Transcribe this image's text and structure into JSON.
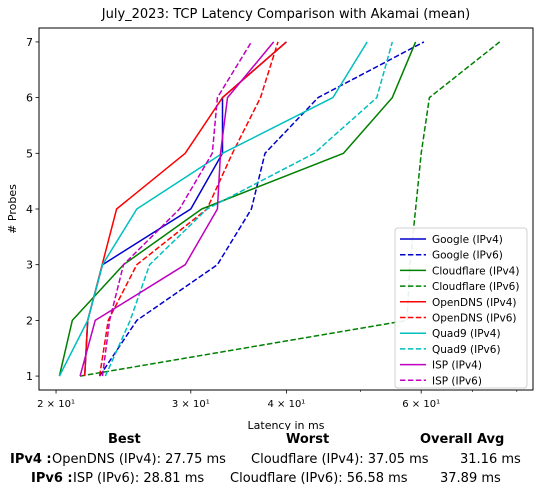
{
  "chart_data": {
    "type": "line",
    "title": "July_2023: TCP Latency Comparison with Akamai (mean)",
    "xlabel": "Latency in ms",
    "ylabel": "# Probes",
    "xscale": "log",
    "xlim": [
      19,
      84
    ],
    "ylim": [
      0.75,
      7.25
    ],
    "yticks": [
      1,
      2,
      3,
      4,
      5,
      6,
      7
    ],
    "xticks": [
      {
        "value": 20,
        "label": "2 × 10¹"
      },
      {
        "value": 30,
        "label": "3 × 10¹"
      },
      {
        "value": 40,
        "label": "4 × 10¹"
      },
      {
        "value": 60,
        "label": "6 × 10¹"
      }
    ],
    "grid": false,
    "legend_position": "lower-right",
    "series": [
      {
        "name": "Google (IPv4)",
        "color": "#0000cc",
        "dash": "solid",
        "points": [
          [
            21.8,
            1
          ],
          [
            22.0,
            2
          ],
          [
            23.0,
            3
          ],
          [
            30.0,
            4
          ],
          [
            33.0,
            5
          ],
          [
            33.0,
            6
          ],
          [
            40.0,
            7
          ]
        ]
      },
      {
        "name": "Google (IPv6)",
        "color": "#0000cc",
        "dash": "dashed",
        "points": [
          [
            22.8,
            1
          ],
          [
            25.5,
            2
          ],
          [
            32.5,
            3
          ],
          [
            36.0,
            4
          ],
          [
            37.5,
            5
          ],
          [
            44.0,
            6
          ],
          [
            60.5,
            7
          ]
        ]
      },
      {
        "name": "Cloudflare (IPv4)",
        "color": "#008000",
        "dash": "solid",
        "points": [
          [
            20.2,
            1
          ],
          [
            21.0,
            2
          ],
          [
            24.5,
            3
          ],
          [
            31.0,
            4
          ],
          [
            47.5,
            5
          ],
          [
            55.0,
            6
          ],
          [
            59.0,
            7
          ]
        ]
      },
      {
        "name": "Cloudflare (IPv6)",
        "color": "#008000",
        "dash": "dashed",
        "points": [
          [
            21.5,
            1
          ],
          [
            57.5,
            2
          ],
          [
            58.0,
            3
          ],
          [
            59.0,
            4
          ],
          [
            60.0,
            5
          ],
          [
            61.5,
            6
          ],
          [
            76.0,
            7
          ]
        ]
      },
      {
        "name": "OpenDNS (IPv4)",
        "color": "#ff0000",
        "dash": "solid",
        "points": [
          [
            21.8,
            1
          ],
          [
            22.0,
            2
          ],
          [
            24.0,
            4
          ],
          [
            29.5,
            5
          ],
          [
            33.0,
            6
          ],
          [
            40.0,
            7
          ]
        ]
      },
      {
        "name": "OpenDNS (IPv6)",
        "color": "#ff0000",
        "dash": "dashed",
        "points": [
          [
            22.8,
            1
          ],
          [
            23.4,
            2
          ],
          [
            25.5,
            3
          ],
          [
            31.5,
            4
          ],
          [
            34.0,
            5
          ],
          [
            37.0,
            6
          ],
          [
            39.0,
            7
          ]
        ]
      },
      {
        "name": "Quad9 (IPv4)",
        "color": "#00bfbf",
        "dash": "solid",
        "points": [
          [
            20.2,
            1
          ],
          [
            22.0,
            2
          ],
          [
            23.0,
            3
          ],
          [
            25.5,
            4
          ],
          [
            33.0,
            5
          ],
          [
            46.0,
            6
          ],
          [
            51.0,
            7
          ]
        ]
      },
      {
        "name": "Quad9 (IPv6)",
        "color": "#00bfbf",
        "dash": "dashed",
        "points": [
          [
            23.2,
            1
          ],
          [
            25.0,
            2
          ],
          [
            26.5,
            3
          ],
          [
            31.5,
            4
          ],
          [
            43.5,
            5
          ],
          [
            52.5,
            6
          ],
          [
            55.0,
            7
          ]
        ]
      },
      {
        "name": "ISP (IPv4)",
        "color": "#bf00bf",
        "dash": "solid",
        "points": [
          [
            21.5,
            1
          ],
          [
            22.5,
            2
          ],
          [
            29.5,
            3
          ],
          [
            32.5,
            4
          ],
          [
            32.8,
            5
          ],
          [
            33.5,
            6
          ],
          [
            38.5,
            7
          ]
        ]
      },
      {
        "name": "ISP (IPv6)",
        "color": "#bf00bf",
        "dash": "dashed",
        "points": [
          [
            23.0,
            1
          ],
          [
            23.5,
            2
          ],
          [
            24.5,
            3
          ],
          [
            29.0,
            4
          ],
          [
            32.0,
            5
          ],
          [
            32.5,
            6
          ],
          [
            36.0,
            7
          ]
        ]
      }
    ]
  },
  "stats": {
    "headers": {
      "best": "Best",
      "worst": "Worst",
      "avg": "Overall Avg"
    },
    "rows": [
      {
        "label": "IPv4 :",
        "best": "OpenDNS (IPv4): 27.75 ms",
        "worst": "Cloudflare (IPv4): 37.05 ms",
        "avg": "31.16 ms"
      },
      {
        "label": "IPv6 :",
        "best": "ISP (IPv6): 28.81 ms",
        "worst": "Cloudflare (IPv6): 56.58 ms",
        "avg": "37.89 ms"
      }
    ]
  }
}
